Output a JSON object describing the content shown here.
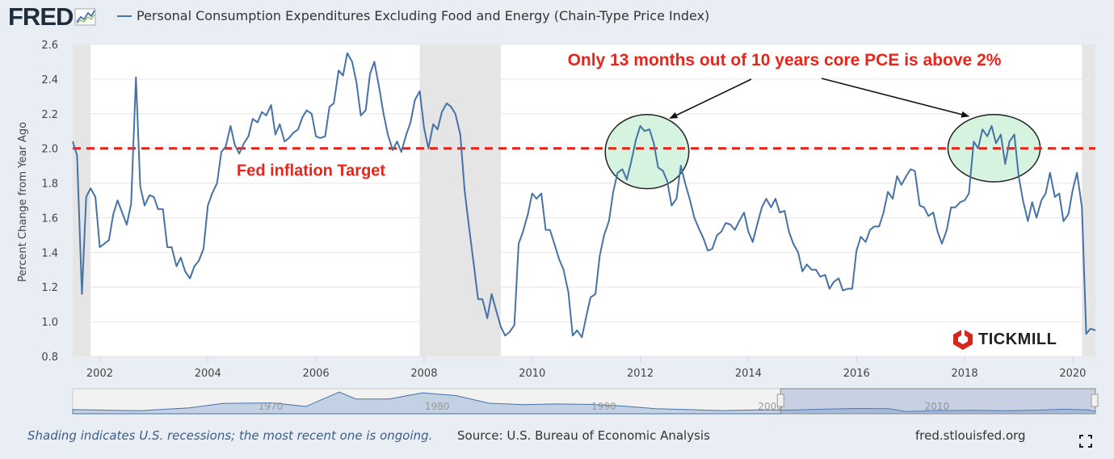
{
  "header": {
    "logo_text": "FRED",
    "series_title": "Personal Consumption Expenditures Excluding Food and Energy (Chain-Type Price Index)"
  },
  "colors": {
    "line": "#4572a7",
    "target_line": "#e8251b",
    "recession_shade": "#e5e5e5",
    "circle_fill": "#d5f3df",
    "annotation_text": "#e8251b",
    "background": "#e9eef4"
  },
  "chart_data": {
    "type": "line",
    "ylabel": "Percent Change from Year Ago",
    "xlabel": "",
    "ylim": [
      0.8,
      2.6
    ],
    "xlim": [
      2001.5,
      2020.42
    ],
    "y_ticks": [
      "0.8",
      "1.0",
      "1.2",
      "1.4",
      "1.6",
      "1.8",
      "2.0",
      "2.2",
      "2.4",
      "2.6"
    ],
    "x_ticks": [
      "2002",
      "2004",
      "2006",
      "2008",
      "2010",
      "2012",
      "2014",
      "2016",
      "2018",
      "2020"
    ],
    "grid": true,
    "recessions": [
      [
        2001.5,
        2001.83
      ],
      [
        2007.92,
        2009.42
      ],
      [
        2020.17,
        2020.42
      ]
    ],
    "target_value": 2.0,
    "series": [
      {
        "values": [
          [
            2001.5,
            2.04
          ],
          [
            2001.58,
            1.96
          ],
          [
            2001.67,
            1.16
          ],
          [
            2001.75,
            1.72
          ],
          [
            2001.83,
            1.77
          ],
          [
            2001.92,
            1.72
          ],
          [
            2002.0,
            1.43
          ],
          [
            2002.17,
            1.47
          ],
          [
            2002.25,
            1.62
          ],
          [
            2002.33,
            1.7
          ],
          [
            2002.5,
            1.56
          ],
          [
            2002.58,
            1.68
          ],
          [
            2002.67,
            2.41
          ],
          [
            2002.75,
            1.78
          ],
          [
            2002.83,
            1.67
          ],
          [
            2002.92,
            1.73
          ],
          [
            2003.0,
            1.72
          ],
          [
            2003.08,
            1.65
          ],
          [
            2003.17,
            1.65
          ],
          [
            2003.25,
            1.43
          ],
          [
            2003.33,
            1.43
          ],
          [
            2003.42,
            1.32
          ],
          [
            2003.5,
            1.37
          ],
          [
            2003.58,
            1.29
          ],
          [
            2003.67,
            1.25
          ],
          [
            2003.75,
            1.32
          ],
          [
            2003.83,
            1.35
          ],
          [
            2003.92,
            1.42
          ],
          [
            2004.0,
            1.67
          ],
          [
            2004.08,
            1.74
          ],
          [
            2004.17,
            1.8
          ],
          [
            2004.25,
            1.98
          ],
          [
            2004.33,
            2.01
          ],
          [
            2004.42,
            2.13
          ],
          [
            2004.5,
            2.02
          ],
          [
            2004.58,
            1.97
          ],
          [
            2004.67,
            2.03
          ],
          [
            2004.75,
            2.07
          ],
          [
            2004.83,
            2.17
          ],
          [
            2004.92,
            2.15
          ],
          [
            2005.0,
            2.21
          ],
          [
            2005.08,
            2.19
          ],
          [
            2005.17,
            2.25
          ],
          [
            2005.25,
            2.08
          ],
          [
            2005.33,
            2.14
          ],
          [
            2005.42,
            2.04
          ],
          [
            2005.5,
            2.06
          ],
          [
            2005.58,
            2.09
          ],
          [
            2005.67,
            2.11
          ],
          [
            2005.75,
            2.18
          ],
          [
            2005.83,
            2.22
          ],
          [
            2005.92,
            2.2
          ],
          [
            2006.0,
            2.07
          ],
          [
            2006.08,
            2.06
          ],
          [
            2006.17,
            2.07
          ],
          [
            2006.25,
            2.24
          ],
          [
            2006.33,
            2.26
          ],
          [
            2006.42,
            2.45
          ],
          [
            2006.5,
            2.42
          ],
          [
            2006.58,
            2.55
          ],
          [
            2006.67,
            2.5
          ],
          [
            2006.75,
            2.38
          ],
          [
            2006.83,
            2.19
          ],
          [
            2006.92,
            2.22
          ],
          [
            2007.0,
            2.43
          ],
          [
            2007.08,
            2.5
          ],
          [
            2007.17,
            2.35
          ],
          [
            2007.25,
            2.2
          ],
          [
            2007.33,
            2.08
          ],
          [
            2007.42,
            1.99
          ],
          [
            2007.5,
            2.04
          ],
          [
            2007.58,
            1.98
          ],
          [
            2007.67,
            2.08
          ],
          [
            2007.75,
            2.15
          ],
          [
            2007.83,
            2.28
          ],
          [
            2007.92,
            2.33
          ],
          [
            2008.0,
            2.12
          ],
          [
            2008.08,
            2.0
          ],
          [
            2008.17,
            2.14
          ],
          [
            2008.25,
            2.11
          ],
          [
            2008.33,
            2.21
          ],
          [
            2008.42,
            2.26
          ],
          [
            2008.5,
            2.24
          ],
          [
            2008.58,
            2.2
          ],
          [
            2008.67,
            2.08
          ],
          [
            2008.75,
            1.76
          ],
          [
            2008.83,
            1.55
          ],
          [
            2008.92,
            1.33
          ],
          [
            2009.0,
            1.13
          ],
          [
            2009.08,
            1.13
          ],
          [
            2009.17,
            1.02
          ],
          [
            2009.25,
            1.16
          ],
          [
            2009.33,
            1.07
          ],
          [
            2009.42,
            0.97
          ],
          [
            2009.5,
            0.92
          ],
          [
            2009.58,
            0.94
          ],
          [
            2009.67,
            0.98
          ],
          [
            2009.75,
            1.45
          ],
          [
            2009.83,
            1.52
          ],
          [
            2009.92,
            1.62
          ],
          [
            2010.0,
            1.74
          ],
          [
            2010.08,
            1.71
          ],
          [
            2010.17,
            1.74
          ],
          [
            2010.25,
            1.53
          ],
          [
            2010.33,
            1.53
          ],
          [
            2010.42,
            1.44
          ],
          [
            2010.5,
            1.36
          ],
          [
            2010.58,
            1.3
          ],
          [
            2010.67,
            1.17
          ],
          [
            2010.75,
            0.92
          ],
          [
            2010.83,
            0.95
          ],
          [
            2010.92,
            0.91
          ],
          [
            2011.0,
            1.03
          ],
          [
            2011.08,
            1.14
          ],
          [
            2011.17,
            1.16
          ],
          [
            2011.25,
            1.38
          ],
          [
            2011.33,
            1.5
          ],
          [
            2011.42,
            1.58
          ],
          [
            2011.5,
            1.75
          ],
          [
            2011.58,
            1.86
          ],
          [
            2011.67,
            1.88
          ],
          [
            2011.75,
            1.82
          ],
          [
            2011.83,
            1.92
          ],
          [
            2011.92,
            2.05
          ],
          [
            2012.0,
            2.13
          ],
          [
            2012.08,
            2.1
          ],
          [
            2012.17,
            2.11
          ],
          [
            2012.25,
            2.03
          ],
          [
            2012.33,
            1.89
          ],
          [
            2012.42,
            1.87
          ],
          [
            2012.5,
            1.81
          ],
          [
            2012.58,
            1.67
          ],
          [
            2012.67,
            1.71
          ],
          [
            2012.75,
            1.9
          ],
          [
            2012.83,
            1.8
          ],
          [
            2012.92,
            1.7
          ],
          [
            2013.0,
            1.6
          ],
          [
            2013.08,
            1.54
          ],
          [
            2013.17,
            1.48
          ],
          [
            2013.25,
            1.41
          ],
          [
            2013.33,
            1.42
          ],
          [
            2013.42,
            1.5
          ],
          [
            2013.5,
            1.52
          ],
          [
            2013.58,
            1.57
          ],
          [
            2013.67,
            1.56
          ],
          [
            2013.75,
            1.53
          ],
          [
            2013.83,
            1.58
          ],
          [
            2013.92,
            1.63
          ],
          [
            2014.0,
            1.52
          ],
          [
            2014.08,
            1.46
          ],
          [
            2014.17,
            1.57
          ],
          [
            2014.25,
            1.66
          ],
          [
            2014.33,
            1.71
          ],
          [
            2014.42,
            1.66
          ],
          [
            2014.5,
            1.71
          ],
          [
            2014.58,
            1.63
          ],
          [
            2014.67,
            1.64
          ],
          [
            2014.75,
            1.52
          ],
          [
            2014.83,
            1.45
          ],
          [
            2014.92,
            1.4
          ],
          [
            2015.0,
            1.29
          ],
          [
            2015.08,
            1.33
          ],
          [
            2015.17,
            1.3
          ],
          [
            2015.25,
            1.3
          ],
          [
            2015.33,
            1.26
          ],
          [
            2015.42,
            1.27
          ],
          [
            2015.5,
            1.19
          ],
          [
            2015.58,
            1.23
          ],
          [
            2015.67,
            1.25
          ],
          [
            2015.75,
            1.18
          ],
          [
            2015.83,
            1.19
          ],
          [
            2015.92,
            1.19
          ],
          [
            2016.0,
            1.41
          ],
          [
            2016.08,
            1.49
          ],
          [
            2016.17,
            1.46
          ],
          [
            2016.25,
            1.53
          ],
          [
            2016.33,
            1.55
          ],
          [
            2016.42,
            1.55
          ],
          [
            2016.5,
            1.63
          ],
          [
            2016.58,
            1.75
          ],
          [
            2016.67,
            1.71
          ],
          [
            2016.75,
            1.84
          ],
          [
            2016.83,
            1.79
          ],
          [
            2016.92,
            1.84
          ],
          [
            2017.0,
            1.88
          ],
          [
            2017.08,
            1.87
          ],
          [
            2017.17,
            1.67
          ],
          [
            2017.25,
            1.66
          ],
          [
            2017.33,
            1.61
          ],
          [
            2017.42,
            1.63
          ],
          [
            2017.5,
            1.52
          ],
          [
            2017.58,
            1.45
          ],
          [
            2017.67,
            1.53
          ],
          [
            2017.75,
            1.66
          ],
          [
            2017.83,
            1.66
          ],
          [
            2017.92,
            1.69
          ],
          [
            2018.0,
            1.7
          ],
          [
            2018.08,
            1.74
          ],
          [
            2018.17,
            2.04
          ],
          [
            2018.25,
            2.0
          ],
          [
            2018.33,
            2.11
          ],
          [
            2018.42,
            2.07
          ],
          [
            2018.5,
            2.13
          ],
          [
            2018.58,
            2.03
          ],
          [
            2018.67,
            2.08
          ],
          [
            2018.75,
            1.91
          ],
          [
            2018.83,
            2.04
          ],
          [
            2018.92,
            2.08
          ],
          [
            2019.0,
            1.84
          ],
          [
            2019.08,
            1.7
          ],
          [
            2019.17,
            1.58
          ],
          [
            2019.25,
            1.69
          ],
          [
            2019.33,
            1.6
          ],
          [
            2019.42,
            1.7
          ],
          [
            2019.5,
            1.74
          ],
          [
            2019.58,
            1.86
          ],
          [
            2019.67,
            1.72
          ],
          [
            2019.75,
            1.74
          ],
          [
            2019.83,
            1.58
          ],
          [
            2019.92,
            1.62
          ],
          [
            2020.0,
            1.76
          ],
          [
            2020.08,
            1.86
          ],
          [
            2020.17,
            1.66
          ],
          [
            2020.25,
            0.93
          ],
          [
            2020.33,
            0.96
          ],
          [
            2020.42,
            0.95
          ]
        ]
      }
    ],
    "annotations": {
      "headline": "Only 13 months out of 10 years core PCE is above 2%",
      "target_label": "Fed inflation Target"
    },
    "navigator": {
      "labels": [
        "1970",
        "1980",
        "1990",
        "2000",
        "2010"
      ]
    }
  },
  "footer": {
    "note": "Shading indicates U.S. recessions; the most recent one is ongoing.",
    "source": "Source: U.S. Bureau of Economic Analysis",
    "site": "fred.stlouisfed.org"
  },
  "watermark": {
    "brand": "TICKMILL"
  },
  "icons": {
    "logo_graph": "fred-graph-icon",
    "fullscreen": "fullscreen-icon",
    "watermark": "tickmill-logo-icon"
  }
}
